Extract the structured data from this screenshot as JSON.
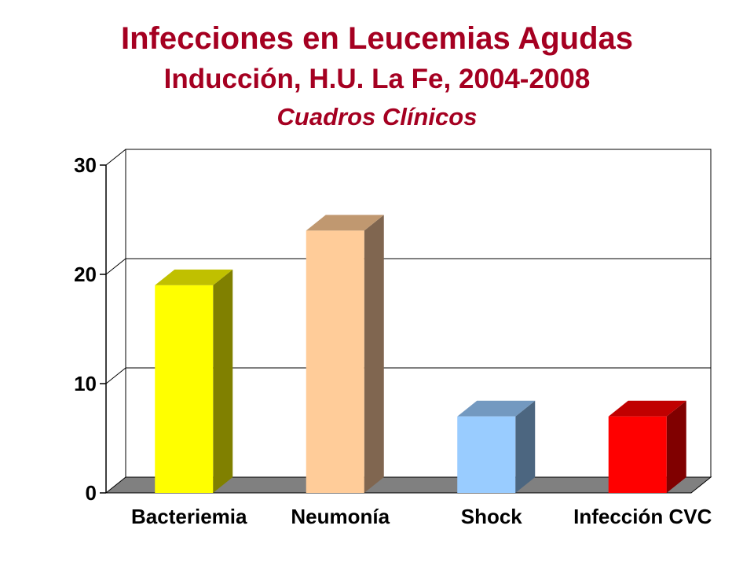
{
  "header": {
    "title": "Infecciones en Leucemias Agudas",
    "subtitle": "Inducción, H.U. La Fe, 2004-2008",
    "subsubtitle": "Cuadros Clínicos"
  },
  "chart_data": {
    "type": "bar",
    "title": "Infecciones en Leucemias Agudas",
    "subtitle": "Inducción, H.U. La Fe, 2004-2008 — Cuadros Clínicos",
    "xlabel": "",
    "ylabel": "",
    "categories": [
      "Bacteriemia",
      "Neumonía",
      "Shock",
      "Infección CVC"
    ],
    "values": [
      19,
      24,
      7,
      7
    ],
    "ylim": [
      0,
      30
    ],
    "yticks": [
      0,
      10,
      20,
      30
    ],
    "grid": true,
    "legend": "none",
    "style": "3d-bars",
    "colors": [
      {
        "front": "#ffff00",
        "top": "#c0c000",
        "side": "#808000"
      },
      {
        "front": "#ffcc99",
        "top": "#c09870",
        "side": "#806650"
      },
      {
        "front": "#99ccff",
        "top": "#7399c0",
        "side": "#4c6680"
      },
      {
        "front": "#ff0000",
        "top": "#c00000",
        "side": "#800000"
      }
    ],
    "floor_color": "#808080"
  }
}
